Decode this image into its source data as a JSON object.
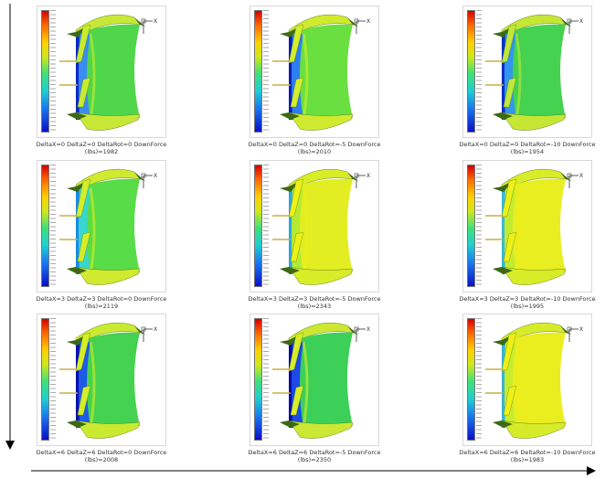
{
  "panels": [
    {
      "line1": "DeltaX=0  DeltaZ=0  DeltaRot=0  DownForce",
      "line2": "(lbs)=1982",
      "body": "#4fd64a",
      "inner": "#3b8cf0",
      "edge": "#0a2ac8",
      "flap": "#c8ec30",
      "tip": "#c8e838"
    },
    {
      "line1": "DeltaX=0  DeltaZ=0  DeltaRot=-5  DownForce",
      "line2": "(lbs)=2010",
      "body": "#6ae040",
      "inner": "#2e7ef0",
      "edge": "#0a1eb8",
      "flap": "#d2ee2c",
      "tip": "#d0ea30"
    },
    {
      "line1": "DeltaX=0  DeltaZ=0  DeltaRot=-10  DownForce",
      "line2": "(lbs)=1954",
      "body": "#44d250",
      "inner": "#3396ee",
      "edge": "#0c30c4",
      "flap": "#c0e838",
      "tip": "#c6e636"
    },
    {
      "line1": "DeltaX=3  DeltaZ=3  DeltaRot=0  DownForce",
      "line2": "(lbs)=2119",
      "body": "#58dc48",
      "inner": "#38d6d0",
      "edge": "#1a8ae8",
      "flap": "#d4ee28",
      "tip": "#d0ea30"
    },
    {
      "line1": "DeltaX=3  DeltaZ=3  DeltaRot=-5  DownForce",
      "line2": "(lbs)=2343",
      "body": "#e2ee22",
      "inner": "#b4ea34",
      "edge": "#2aa8e0",
      "flap": "#eef016",
      "tip": "#d8ec28"
    },
    {
      "line1": "DeltaX=3  DeltaZ=3  DeltaRot=-10  DownForce",
      "line2": "(lbs)=1995",
      "body": "#e8ee20",
      "inner": "#c2ec30",
      "edge": "#3ab8d8",
      "flap": "#eef018",
      "tip": "#d8ec28"
    },
    {
      "line1": "DeltaX=6  DeltaZ=6  DeltaRot=0  DownForce",
      "line2": "(lbs)=2008",
      "body": "#44d250",
      "inner": "#1e5ae8",
      "edge": "#0810b0",
      "flap": "#d4ee28",
      "tip": "#caea32"
    },
    {
      "line1": "DeltaX=6  DeltaZ=6  DeltaRot=-5  DownForce",
      "line2": "(lbs)=2350",
      "body": "#3cd058",
      "inner": "#1c4ae6",
      "edge": "#060aa8",
      "flap": "#d6ee28",
      "tip": "#cce834"
    },
    {
      "line1": "DeltaX=6  DeltaZ=6  DeltaRot=-10  DownForce",
      "line2": "(lbs)=1983",
      "body": "#eaee1e",
      "inner": "#c8ec2e",
      "edge": "#36b4dc",
      "flap": "#eef016",
      "tip": "#d6ec2a"
    }
  ],
  "axis_label": "X"
}
